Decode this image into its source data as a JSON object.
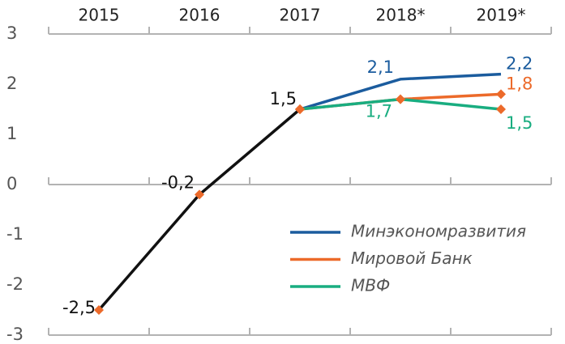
{
  "chart_data": {
    "type": "line",
    "categories": [
      "2015",
      "2016",
      "2017",
      "2018*",
      "2019*"
    ],
    "ylim": [
      -3,
      3
    ],
    "yticks": [
      -3,
      -2,
      -1,
      0,
      1,
      2,
      3
    ],
    "series": [
      {
        "color": "#111111",
        "marker": true,
        "values": [
          -2.5,
          -0.2,
          1.5,
          null,
          null
        ],
        "value_labels": [
          "-2,5",
          "-0,2",
          "1,5",
          null,
          null
        ]
      },
      {
        "name": "Минэкономразвития",
        "color": "#1b5c9e",
        "marker": false,
        "values": [
          null,
          null,
          1.5,
          2.1,
          2.2
        ],
        "value_labels": [
          null,
          null,
          null,
          "2,1",
          "2,2"
        ]
      },
      {
        "name": "Мировой Банк",
        "color": "#ec6a2a",
        "marker": true,
        "values": [
          null,
          null,
          1.5,
          1.7,
          1.8
        ],
        "value_labels": [
          null,
          null,
          null,
          null,
          "1,8"
        ]
      },
      {
        "name": "МВФ",
        "color": "#19ad80",
        "marker": true,
        "values": [
          null,
          null,
          1.5,
          1.7,
          1.5
        ],
        "value_labels": [
          null,
          null,
          null,
          "1,7",
          "1,5"
        ]
      }
    ],
    "marker_color": "#ec6a2a"
  }
}
